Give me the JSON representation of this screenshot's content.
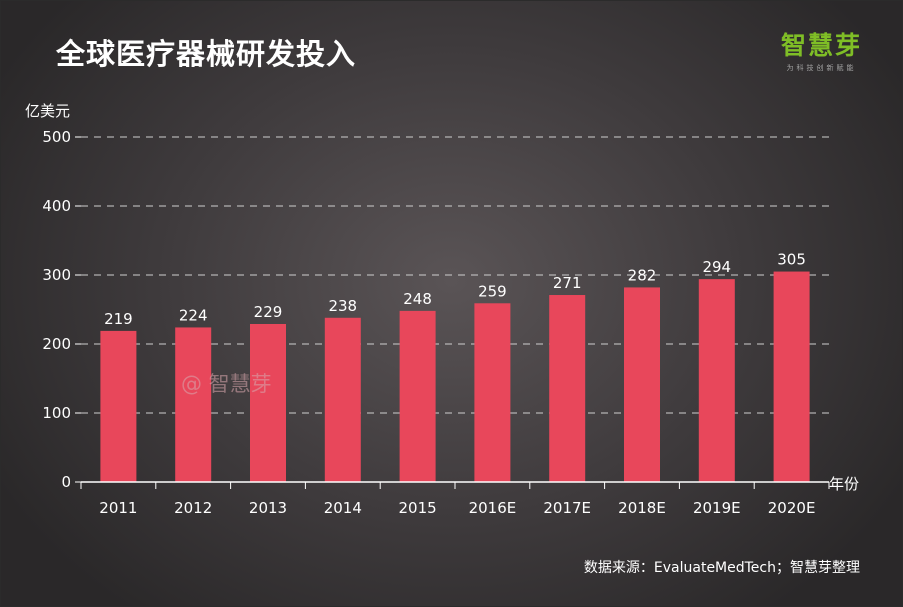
{
  "header": {
    "brand_logo": "智慧芽",
    "brand_tagline": "为科技创新赋能"
  },
  "footer": {
    "source": "数据来源：EvaluateMedTech；智慧芽整理"
  },
  "watermark": "@ 智慧芽",
  "colors": {
    "bar": "#e8475b",
    "brand": "#7fbe26"
  },
  "chart_data": {
    "type": "bar",
    "title": "全球医疗器械研发投入",
    "ylabel": "亿美元",
    "xlabel": "年份",
    "ylim": [
      0,
      500
    ],
    "yticks": [
      0,
      100,
      200,
      300,
      400,
      500
    ],
    "grid": true,
    "categories": [
      "2011",
      "2012",
      "2013",
      "2014",
      "2015",
      "2016E",
      "2017E",
      "2018E",
      "2019E",
      "2020E"
    ],
    "values": [
      219,
      224,
      229,
      238,
      248,
      259,
      271,
      282,
      294,
      305
    ]
  }
}
